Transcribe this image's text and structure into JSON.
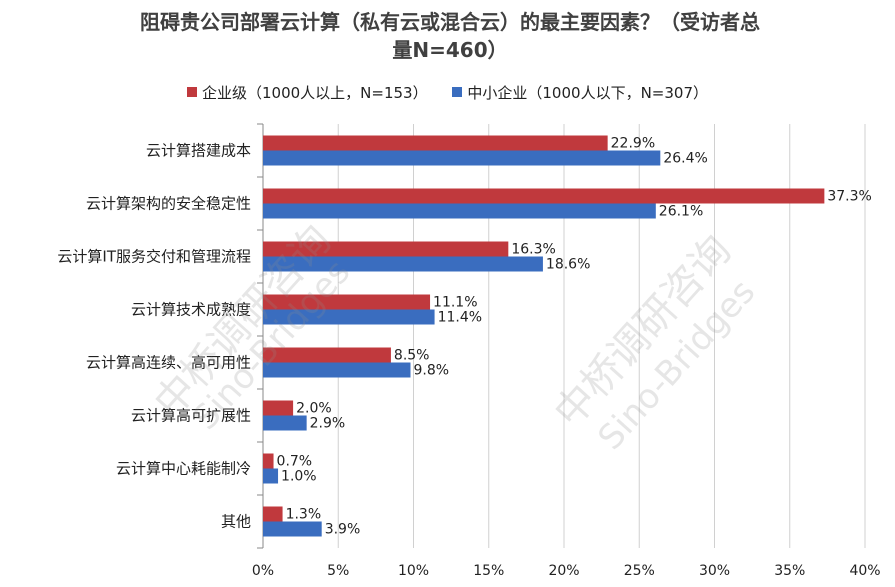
{
  "chart_data": {
    "type": "bar",
    "orientation": "horizontal",
    "title": "阻碍贵公司部署云计算（私有云或混合云）的最主要因素？（受访者总量N=460）",
    "title_line1": "阻碍贵公司部署云计算（私有云或混合云）的最主要因素？（受访者总",
    "title_line2": "量N=460）",
    "categories": [
      "云计算搭建成本",
      "云计算架构的安全稳定性",
      "云计算IT服务交付和管理流程",
      "云计算技术成熟度",
      "云计算高连续、高可用性",
      "云计算高可扩展性",
      "云计算中心耗能制冷",
      "其他"
    ],
    "series": [
      {
        "name": "企业级（1000人以上，N=153）",
        "color": "#C0393D",
        "values": [
          22.9,
          37.3,
          16.3,
          11.1,
          8.5,
          2.0,
          0.7,
          1.3
        ],
        "labels": [
          "22.9%",
          "37.3%",
          "16.3%",
          "11.1%",
          "8.5%",
          "2.0%",
          "0.7%",
          "1.3%"
        ]
      },
      {
        "name": "中小企业（1000人以下，N=307）",
        "color": "#3A6DBF",
        "values": [
          26.4,
          26.1,
          18.6,
          11.4,
          9.8,
          2.9,
          1.0,
          3.9
        ],
        "labels": [
          "26.4%",
          "26.1%",
          "18.6%",
          "11.4%",
          "9.8%",
          "2.9%",
          "1.0%",
          "3.9%"
        ]
      }
    ],
    "xlim": [
      0,
      40
    ],
    "xticks": [
      0,
      5,
      10,
      15,
      20,
      25,
      30,
      35,
      40
    ],
    "xtick_labels": [
      "0%",
      "5%",
      "10%",
      "15%",
      "20%",
      "25%",
      "30%",
      "35%",
      "40%"
    ],
    "legend_position": "top",
    "grid": "vertical"
  },
  "watermarks": [
    "中桥调研咨询",
    "Sino-Bridges",
    "中桥调研咨询",
    "Sino-Bridges"
  ]
}
